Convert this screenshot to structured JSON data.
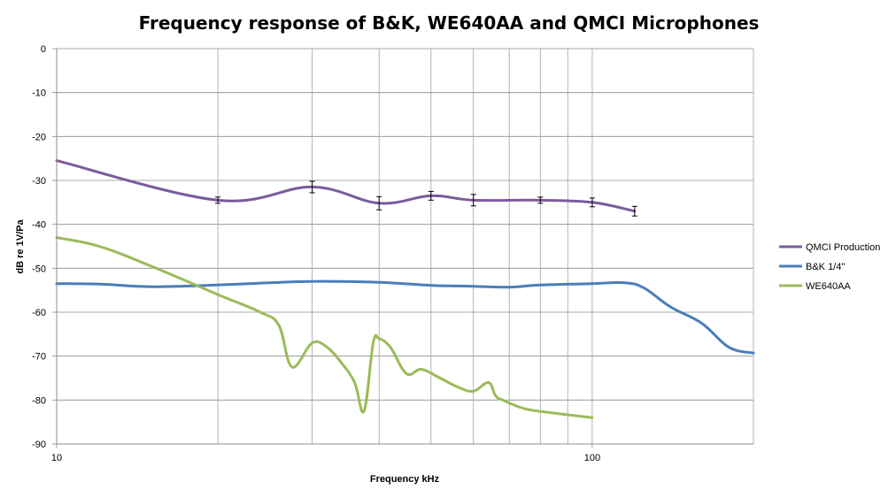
{
  "chart_data": {
    "type": "line",
    "title": "Frequency response of B&K, WE640AA and QMCI Microphones",
    "xlabel": "Frequency kHz",
    "ylabel": "dB re 1V/Pa",
    "x_scale": "log",
    "xlim": [
      10,
      200
    ],
    "ylim": [
      -90,
      0
    ],
    "x_ticks": [
      10,
      100
    ],
    "x_tick_labels": [
      "10",
      "100"
    ],
    "x_minor_grid": [
      20,
      30,
      40,
      50,
      60,
      70,
      80,
      90
    ],
    "y_ticks": [
      0,
      -10,
      -20,
      -30,
      -40,
      -50,
      -60,
      -70,
      -80,
      -90
    ],
    "y_tick_labels": [
      "0",
      "-10",
      "-20",
      "-30",
      "-40",
      "-50",
      "-60",
      "-70",
      "-80",
      "-90"
    ],
    "grid": true,
    "legend_position": "right",
    "series": [
      {
        "name": "QMCI Production",
        "color": "#7b5a9e",
        "x": [
          10,
          20,
          30,
          40,
          50,
          60,
          80,
          100,
          120
        ],
        "y": [
          -25.5,
          -34.5,
          -31.5,
          -35.2,
          -33.5,
          -34.5,
          -34.5,
          -35.0,
          -37.0
        ],
        "error": [
          0,
          0.7,
          1.3,
          1.5,
          1.0,
          1.3,
          0.7,
          1.0,
          1.1
        ]
      },
      {
        "name": "B&K 1/4\"",
        "color": "#4a7ebb",
        "x": [
          10,
          12,
          15,
          20,
          25,
          30,
          40,
          50,
          60,
          70,
          80,
          100,
          115,
          125,
          140,
          160,
          180,
          200
        ],
        "y": [
          -53.5,
          -53.6,
          -54.2,
          -53.8,
          -53.3,
          -53.0,
          -53.2,
          -53.9,
          -54.1,
          -54.3,
          -53.8,
          -53.5,
          -53.3,
          -54.5,
          -58.8,
          -62.5,
          -68.0,
          -69.3
        ]
      },
      {
        "name": "WE640AA",
        "color": "#9bbb59",
        "x": [
          10,
          12,
          15,
          20,
          24,
          26,
          27.5,
          30,
          32,
          34,
          36,
          37.5,
          39,
          40,
          42,
          45,
          48,
          52,
          56,
          60,
          64,
          66,
          68,
          75,
          85,
          100
        ],
        "y": [
          -43,
          -45,
          -49.5,
          -56,
          -60,
          -63,
          -72.5,
          -67,
          -68,
          -71.5,
          -76,
          -82.5,
          -67,
          -66,
          -68,
          -74,
          -73,
          -75,
          -77,
          -78,
          -76,
          -79,
          -80,
          -82,
          -83,
          -84
        ]
      }
    ]
  }
}
